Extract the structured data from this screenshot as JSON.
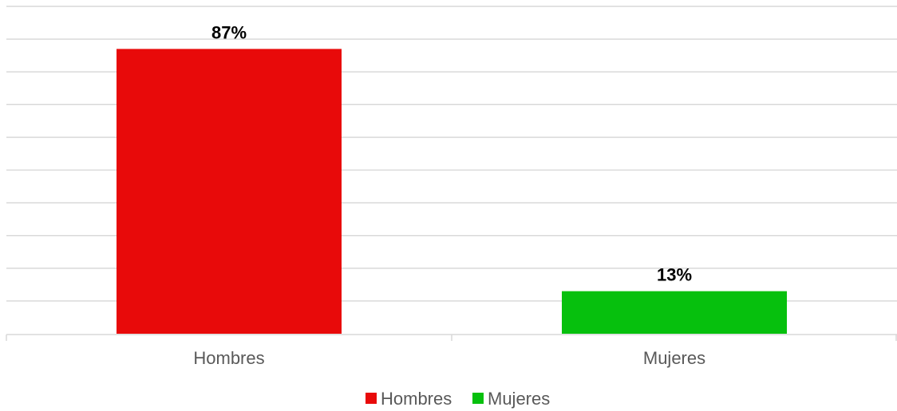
{
  "chart_data": {
    "type": "bar",
    "categories": [
      "Hombres",
      "Mujeres"
    ],
    "values": [
      87,
      13
    ],
    "data_labels": [
      "87%",
      "13%"
    ],
    "unit": "%",
    "colors": [
      "#e80a0a",
      "#06c00d"
    ],
    "ylim": [
      0,
      100
    ],
    "gridlines": true,
    "gridline_step": 10,
    "legend": {
      "position": "bottom",
      "entries": [
        "Hombres",
        "Mujeres"
      ]
    },
    "title": "",
    "xlabel": "",
    "ylabel": ""
  }
}
